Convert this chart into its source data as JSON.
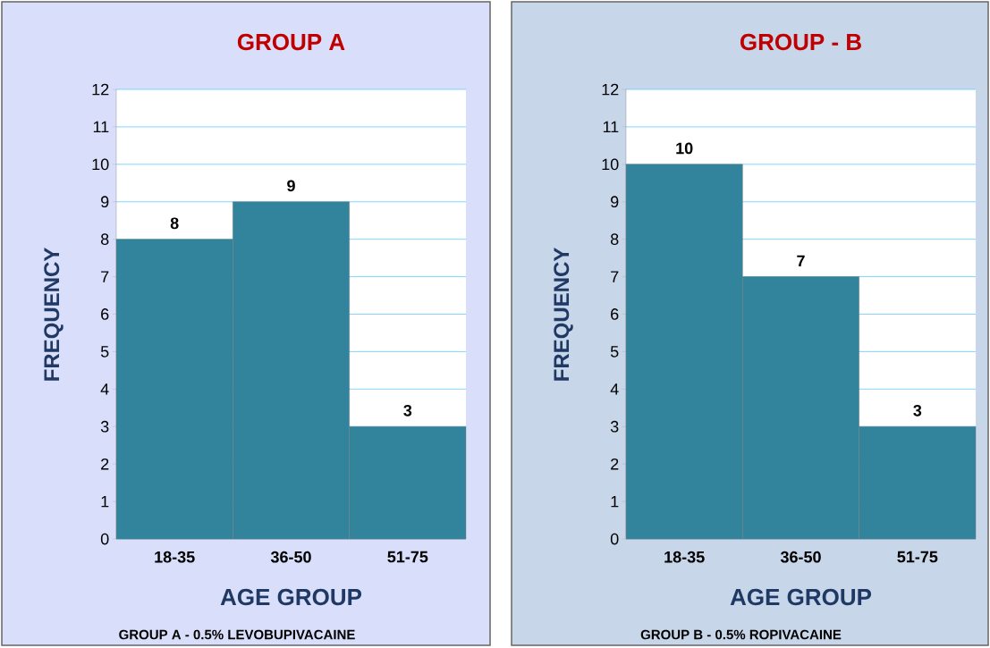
{
  "chart_data": [
    {
      "type": "bar",
      "title": "GROUP A",
      "xlabel": "AGE GROUP",
      "ylabel": "FREQUENCY",
      "categories": [
        "18-35",
        "36-50",
        "51-75"
      ],
      "values": [
        8,
        9,
        3
      ],
      "color": "#31849b",
      "ylim": [
        0,
        12
      ],
      "yticks": [
        0,
        1,
        2,
        3,
        4,
        5,
        6,
        7,
        8,
        9,
        10,
        11,
        12
      ],
      "grid": "y",
      "data_labels": true,
      "annotations": [
        "GROUP A - 0.5% LEVOBUPIVACAINE"
      ]
    },
    {
      "type": "bar",
      "title": "GROUP - B",
      "xlabel": "AGE GROUP",
      "ylabel": "FREQUENCY",
      "categories": [
        "18-35",
        "36-50",
        "51-75"
      ],
      "values": [
        10,
        7,
        3
      ],
      "color": "#31849b",
      "ylim": [
        0,
        12
      ],
      "yticks": [
        0,
        1,
        2,
        3,
        4,
        5,
        6,
        7,
        8,
        9,
        10,
        11,
        12
      ],
      "grid": "y",
      "data_labels": true,
      "annotations": [
        "GROUP B -  0.5% ROPIVACAINE"
      ]
    }
  ]
}
